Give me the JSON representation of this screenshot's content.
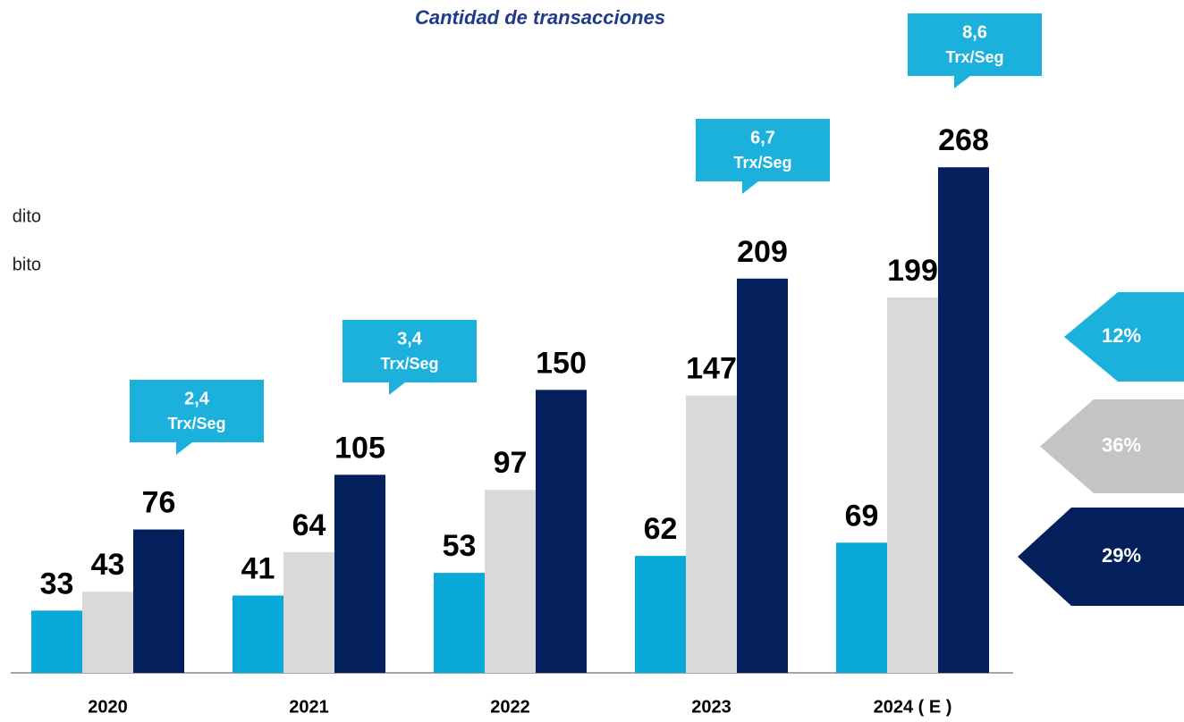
{
  "chart_data": {
    "type": "bar",
    "title": "Cantidad de transacciones",
    "categories": [
      "2020",
      "2021",
      "2022",
      "2023",
      "2024 ( E )"
    ],
    "series": [
      {
        "name": "dito",
        "color": "#08a9d8",
        "values": [
          33,
          41,
          53,
          62,
          69
        ]
      },
      {
        "name": "bito",
        "color": "#d9d9d9",
        "values": [
          43,
          64,
          97,
          147,
          199
        ]
      },
      {
        "color": "#03205c",
        "values": [
          76,
          105,
          150,
          209,
          268
        ]
      }
    ],
    "ylim": [
      0,
      270
    ],
    "annotations": [
      {
        "text": "2,4",
        "subtext": "Trx/Seg"
      },
      {
        "text": "3,4",
        "subtext": "Trx/Seg"
      },
      {
        "text": "6,7",
        "subtext": "Trx/Seg"
      },
      {
        "text": "8,6",
        "subtext": "Trx/Seg"
      }
    ],
    "annotation_color": "#1cb1dd",
    "growth": {
      "values": [
        12,
        36,
        29
      ],
      "value_labels": [
        "12%",
        "36%",
        "29%"
      ],
      "colors": [
        "#1cb1dd",
        "#c4c4c4",
        "#03205c"
      ]
    }
  }
}
